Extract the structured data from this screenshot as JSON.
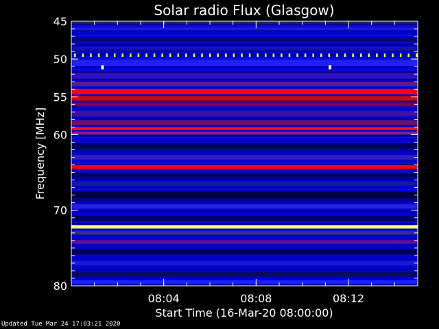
{
  "chart_data": {
    "type": "heatmap",
    "title": "Solar radio Flux (Glasgow)",
    "xlabel": "Start Time (16-Mar-20 08:00:00)",
    "ylabel": "Frequency [MHz]",
    "x_unit": "minutes after 08:00",
    "xlim": [
      0,
      15
    ],
    "ylim": [
      45,
      80
    ],
    "y_inverted": true,
    "x_ticks": [
      {
        "value": 4,
        "label": "08:04"
      },
      {
        "value": 8,
        "label": "08:08"
      },
      {
        "value": 12,
        "label": "08:12"
      }
    ],
    "y_ticks": [
      {
        "value": 45,
        "label": "45"
      },
      {
        "value": 50,
        "label": "50"
      },
      {
        "value": 55,
        "label": "55"
      },
      {
        "value": 60,
        "label": "60"
      },
      {
        "value": 70,
        "label": "70"
      },
      {
        "value": 80,
        "label": "80"
      }
    ],
    "colors": {
      "background": "#0000cc",
      "low": "#000033",
      "mid": "#ff0000",
      "high": "#ffff80"
    },
    "bands": [
      {
        "freq": 45.2,
        "width": 0.3,
        "color": "#202060",
        "level": 0.1
      },
      {
        "freq": 46.0,
        "width": 0.4,
        "color": "#1a1ae0",
        "level": 0.35
      },
      {
        "freq": 47.5,
        "width": 0.6,
        "color": "#0a0a70",
        "level": 0.15
      },
      {
        "freq": 48.6,
        "width": 0.5,
        "color": "#1414a8",
        "level": 0.3
      },
      {
        "freq": 50.5,
        "width": 0.8,
        "color": "#2020ff",
        "level": 0.45
      },
      {
        "freq": 52.2,
        "width": 0.8,
        "color": "#3010c0",
        "level": 0.4
      },
      {
        "freq": 53.3,
        "width": 0.5,
        "color": "#602080",
        "level": 0.5
      },
      {
        "freq": 54.3,
        "width": 0.7,
        "color": "#ff0000",
        "level": 0.8
      },
      {
        "freq": 55.2,
        "width": 0.6,
        "color": "#cc0010",
        "level": 0.7
      },
      {
        "freq": 56.0,
        "width": 0.5,
        "color": "#800040",
        "level": 0.55
      },
      {
        "freq": 57.2,
        "width": 0.7,
        "color": "#4010a0",
        "level": 0.45
      },
      {
        "freq": 58.4,
        "width": 0.6,
        "color": "#701060",
        "level": 0.5
      },
      {
        "freq": 59.2,
        "width": 0.4,
        "color": "#ff1010",
        "level": 0.85
      },
      {
        "freq": 59.8,
        "width": 0.4,
        "color": "#8020a0",
        "level": 0.5
      },
      {
        "freq": 61.5,
        "width": 0.8,
        "color": "#000060",
        "level": 0.1
      },
      {
        "freq": 63.0,
        "width": 0.6,
        "color": "#3020c0",
        "level": 0.4
      },
      {
        "freq": 64.3,
        "width": 0.5,
        "color": "#ff0000",
        "level": 0.9
      },
      {
        "freq": 65.3,
        "width": 0.5,
        "color": "#000050",
        "level": 0.1
      },
      {
        "freq": 66.5,
        "width": 0.6,
        "color": "#1515b0",
        "level": 0.3
      },
      {
        "freq": 68.0,
        "width": 0.8,
        "color": "#000040",
        "level": 0.05
      },
      {
        "freq": 69.5,
        "width": 0.6,
        "color": "#2a20e0",
        "level": 0.4
      },
      {
        "freq": 71.2,
        "width": 0.6,
        "color": "#00006a",
        "level": 0.1
      },
      {
        "freq": 72.2,
        "width": 0.45,
        "color": "#ffff80",
        "level": 1.0
      },
      {
        "freq": 73.0,
        "width": 0.5,
        "color": "#303080",
        "level": 0.3
      },
      {
        "freq": 74.2,
        "width": 0.5,
        "color": "#6010a0",
        "level": 0.45
      },
      {
        "freq": 75.5,
        "width": 0.7,
        "color": "#000050",
        "level": 0.1
      },
      {
        "freq": 77.0,
        "width": 0.6,
        "color": "#1a1ad0",
        "level": 0.35
      },
      {
        "freq": 78.5,
        "width": 0.6,
        "color": "#0a0a60",
        "level": 0.15
      },
      {
        "freq": 79.5,
        "width": 0.5,
        "color": "#2020ff",
        "level": 0.4
      }
    ],
    "periodic_spikes": {
      "freq": 49.5,
      "start": 0.15,
      "interval": 0.344,
      "count": 44,
      "color": "#ffff40"
    },
    "isolated_spikes": [
      {
        "time": 1.35,
        "freq": 51.1,
        "color": "#ffff80"
      },
      {
        "time": 11.2,
        "freq": 51.1,
        "color": "#ffff80"
      }
    ]
  },
  "footer": "Updated Tue Mar 24 17:03:21 2020"
}
